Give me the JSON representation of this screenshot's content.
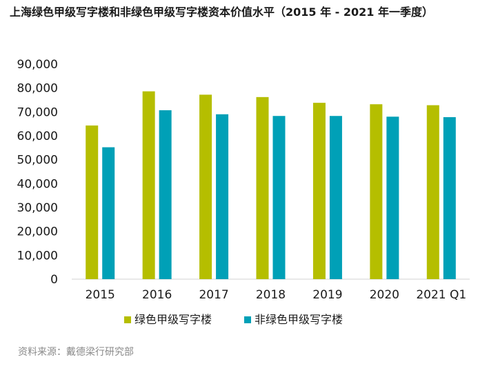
{
  "chart_data": {
    "type": "bar",
    "title": "上海绿色甲级写字楼和非绿色甲级写字楼资本价值水平（2015 年 - 2021 年一季度）",
    "xlabel": "",
    "ylabel": "",
    "ylim": [
      0,
      90000
    ],
    "yticks": [
      "0",
      "10,000",
      "20,000",
      "30,000",
      "40,000",
      "50,000",
      "60,000",
      "70,000",
      "80,000",
      "90,000"
    ],
    "ytick_values": [
      0,
      10000,
      20000,
      30000,
      40000,
      50000,
      60000,
      70000,
      80000,
      90000
    ],
    "categories": [
      "2015",
      "2016",
      "2017",
      "2018",
      "2019",
      "2020",
      "2021 Q1"
    ],
    "series": [
      {
        "name": "绿色甲级写字楼",
        "color": "#b5be00",
        "values": [
          64300,
          78600,
          77200,
          76200,
          73800,
          73200,
          72800
        ]
      },
      {
        "name": "非绿色甲级写字楼",
        "color": "#00a0b7",
        "values": [
          55200,
          70700,
          69000,
          68300,
          68300,
          68000,
          67800
        ]
      }
    ],
    "legend_position": "bottom",
    "grid": false
  },
  "source": "资料来源：戴德梁行研究部"
}
